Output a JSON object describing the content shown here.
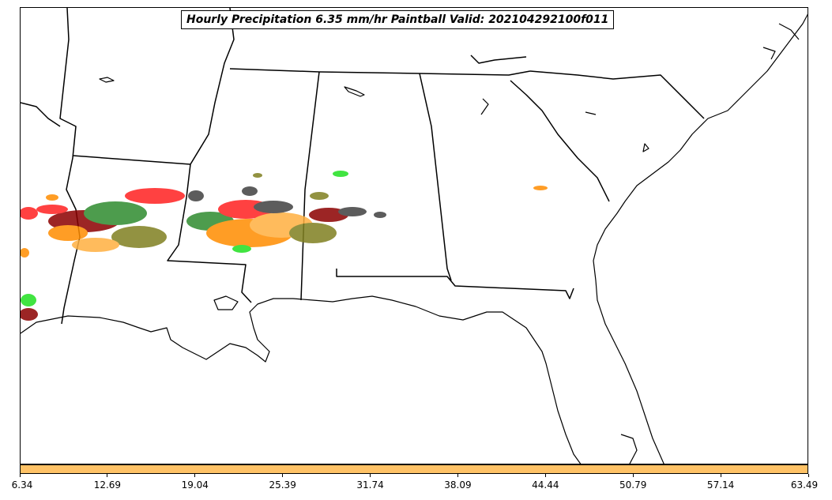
{
  "title": "Hourly Precipitation 6.35 mm/hr Paintball Valid: 202104292100f011",
  "colorbar": {
    "color": "#FFC266",
    "ticks": [
      "6.34",
      "12.69",
      "19.04",
      "25.39",
      "31.74",
      "38.09",
      "44.44",
      "50.79",
      "57.14",
      "63.49"
    ]
  },
  "member_colors": [
    "#2E8B2E",
    "#8B0000",
    "#FF2020",
    "#FF8C00",
    "#808020",
    "#404040",
    "#20E020",
    "#FFB040"
  ],
  "map": {
    "region": "Southeastern United States",
    "features": [
      "coastline",
      "state borders",
      "precipitation paintballs"
    ]
  }
}
